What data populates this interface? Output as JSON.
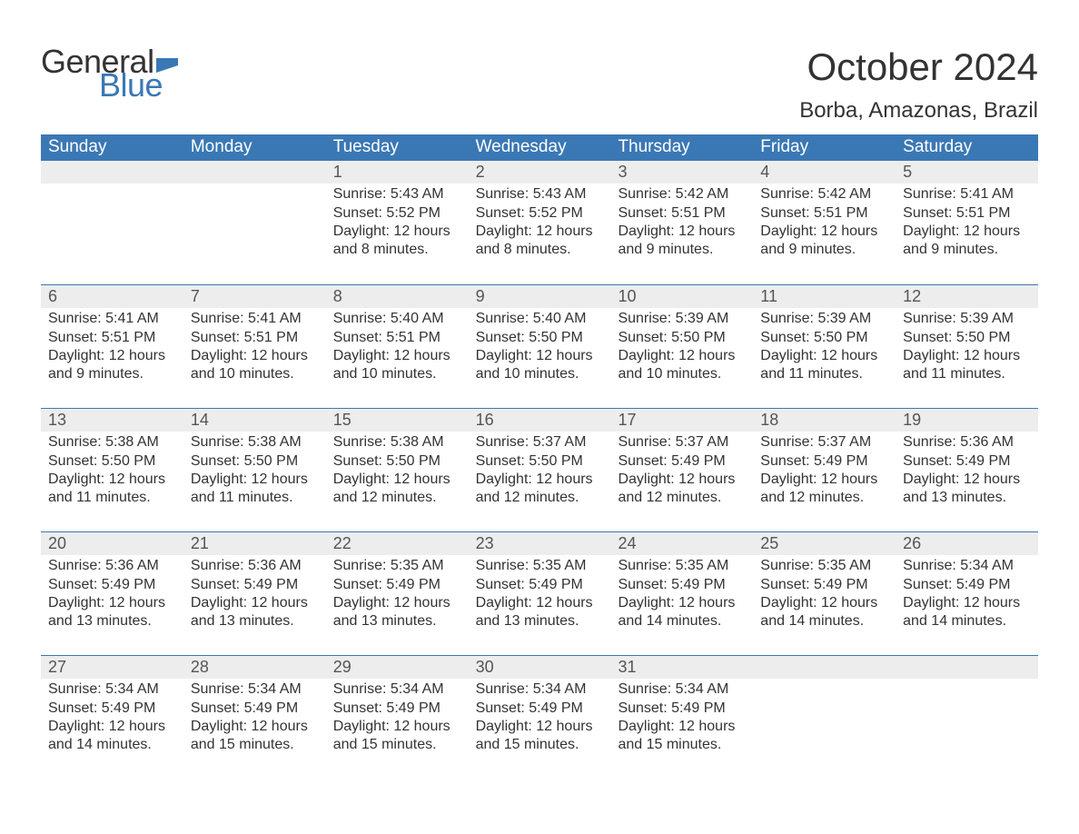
{
  "brand": {
    "word1": "General",
    "word2": "Blue",
    "flag_color": "#3a78b5",
    "word1_color": "#333333",
    "word2_color": "#3a78b5"
  },
  "title": "October 2024",
  "location": "Borba, Amazonas, Brazil",
  "colors": {
    "header_bg": "#3a78b5",
    "header_text": "#ffffff",
    "daynum_bg": "#ededed",
    "text": "#333333",
    "rule": "#3a78b5",
    "background": "#ffffff"
  },
  "typography": {
    "title_fontsize": 42,
    "location_fontsize": 24,
    "header_fontsize": 19,
    "daynum_fontsize": 18,
    "body_fontsize": 16
  },
  "day_headers": [
    "Sunday",
    "Monday",
    "Tuesday",
    "Wednesday",
    "Thursday",
    "Friday",
    "Saturday"
  ],
  "weeks": [
    [
      {
        "n": "",
        "sr": "",
        "ss": "",
        "dl1": "",
        "dl2": ""
      },
      {
        "n": "",
        "sr": "",
        "ss": "",
        "dl1": "",
        "dl2": ""
      },
      {
        "n": "1",
        "sr": "Sunrise: 5:43 AM",
        "ss": "Sunset: 5:52 PM",
        "dl1": "Daylight: 12 hours",
        "dl2": "and 8 minutes."
      },
      {
        "n": "2",
        "sr": "Sunrise: 5:43 AM",
        "ss": "Sunset: 5:52 PM",
        "dl1": "Daylight: 12 hours",
        "dl2": "and 8 minutes."
      },
      {
        "n": "3",
        "sr": "Sunrise: 5:42 AM",
        "ss": "Sunset: 5:51 PM",
        "dl1": "Daylight: 12 hours",
        "dl2": "and 9 minutes."
      },
      {
        "n": "4",
        "sr": "Sunrise: 5:42 AM",
        "ss": "Sunset: 5:51 PM",
        "dl1": "Daylight: 12 hours",
        "dl2": "and 9 minutes."
      },
      {
        "n": "5",
        "sr": "Sunrise: 5:41 AM",
        "ss": "Sunset: 5:51 PM",
        "dl1": "Daylight: 12 hours",
        "dl2": "and 9 minutes."
      }
    ],
    [
      {
        "n": "6",
        "sr": "Sunrise: 5:41 AM",
        "ss": "Sunset: 5:51 PM",
        "dl1": "Daylight: 12 hours",
        "dl2": "and 9 minutes."
      },
      {
        "n": "7",
        "sr": "Sunrise: 5:41 AM",
        "ss": "Sunset: 5:51 PM",
        "dl1": "Daylight: 12 hours",
        "dl2": "and 10 minutes."
      },
      {
        "n": "8",
        "sr": "Sunrise: 5:40 AM",
        "ss": "Sunset: 5:51 PM",
        "dl1": "Daylight: 12 hours",
        "dl2": "and 10 minutes."
      },
      {
        "n": "9",
        "sr": "Sunrise: 5:40 AM",
        "ss": "Sunset: 5:50 PM",
        "dl1": "Daylight: 12 hours",
        "dl2": "and 10 minutes."
      },
      {
        "n": "10",
        "sr": "Sunrise: 5:39 AM",
        "ss": "Sunset: 5:50 PM",
        "dl1": "Daylight: 12 hours",
        "dl2": "and 10 minutes."
      },
      {
        "n": "11",
        "sr": "Sunrise: 5:39 AM",
        "ss": "Sunset: 5:50 PM",
        "dl1": "Daylight: 12 hours",
        "dl2": "and 11 minutes."
      },
      {
        "n": "12",
        "sr": "Sunrise: 5:39 AM",
        "ss": "Sunset: 5:50 PM",
        "dl1": "Daylight: 12 hours",
        "dl2": "and 11 minutes."
      }
    ],
    [
      {
        "n": "13",
        "sr": "Sunrise: 5:38 AM",
        "ss": "Sunset: 5:50 PM",
        "dl1": "Daylight: 12 hours",
        "dl2": "and 11 minutes."
      },
      {
        "n": "14",
        "sr": "Sunrise: 5:38 AM",
        "ss": "Sunset: 5:50 PM",
        "dl1": "Daylight: 12 hours",
        "dl2": "and 11 minutes."
      },
      {
        "n": "15",
        "sr": "Sunrise: 5:38 AM",
        "ss": "Sunset: 5:50 PM",
        "dl1": "Daylight: 12 hours",
        "dl2": "and 12 minutes."
      },
      {
        "n": "16",
        "sr": "Sunrise: 5:37 AM",
        "ss": "Sunset: 5:50 PM",
        "dl1": "Daylight: 12 hours",
        "dl2": "and 12 minutes."
      },
      {
        "n": "17",
        "sr": "Sunrise: 5:37 AM",
        "ss": "Sunset: 5:49 PM",
        "dl1": "Daylight: 12 hours",
        "dl2": "and 12 minutes."
      },
      {
        "n": "18",
        "sr": "Sunrise: 5:37 AM",
        "ss": "Sunset: 5:49 PM",
        "dl1": "Daylight: 12 hours",
        "dl2": "and 12 minutes."
      },
      {
        "n": "19",
        "sr": "Sunrise: 5:36 AM",
        "ss": "Sunset: 5:49 PM",
        "dl1": "Daylight: 12 hours",
        "dl2": "and 13 minutes."
      }
    ],
    [
      {
        "n": "20",
        "sr": "Sunrise: 5:36 AM",
        "ss": "Sunset: 5:49 PM",
        "dl1": "Daylight: 12 hours",
        "dl2": "and 13 minutes."
      },
      {
        "n": "21",
        "sr": "Sunrise: 5:36 AM",
        "ss": "Sunset: 5:49 PM",
        "dl1": "Daylight: 12 hours",
        "dl2": "and 13 minutes."
      },
      {
        "n": "22",
        "sr": "Sunrise: 5:35 AM",
        "ss": "Sunset: 5:49 PM",
        "dl1": "Daylight: 12 hours",
        "dl2": "and 13 minutes."
      },
      {
        "n": "23",
        "sr": "Sunrise: 5:35 AM",
        "ss": "Sunset: 5:49 PM",
        "dl1": "Daylight: 12 hours",
        "dl2": "and 13 minutes."
      },
      {
        "n": "24",
        "sr": "Sunrise: 5:35 AM",
        "ss": "Sunset: 5:49 PM",
        "dl1": "Daylight: 12 hours",
        "dl2": "and 14 minutes."
      },
      {
        "n": "25",
        "sr": "Sunrise: 5:35 AM",
        "ss": "Sunset: 5:49 PM",
        "dl1": "Daylight: 12 hours",
        "dl2": "and 14 minutes."
      },
      {
        "n": "26",
        "sr": "Sunrise: 5:34 AM",
        "ss": "Sunset: 5:49 PM",
        "dl1": "Daylight: 12 hours",
        "dl2": "and 14 minutes."
      }
    ],
    [
      {
        "n": "27",
        "sr": "Sunrise: 5:34 AM",
        "ss": "Sunset: 5:49 PM",
        "dl1": "Daylight: 12 hours",
        "dl2": "and 14 minutes."
      },
      {
        "n": "28",
        "sr": "Sunrise: 5:34 AM",
        "ss": "Sunset: 5:49 PM",
        "dl1": "Daylight: 12 hours",
        "dl2": "and 15 minutes."
      },
      {
        "n": "29",
        "sr": "Sunrise: 5:34 AM",
        "ss": "Sunset: 5:49 PM",
        "dl1": "Daylight: 12 hours",
        "dl2": "and 15 minutes."
      },
      {
        "n": "30",
        "sr": "Sunrise: 5:34 AM",
        "ss": "Sunset: 5:49 PM",
        "dl1": "Daylight: 12 hours",
        "dl2": "and 15 minutes."
      },
      {
        "n": "31",
        "sr": "Sunrise: 5:34 AM",
        "ss": "Sunset: 5:49 PM",
        "dl1": "Daylight: 12 hours",
        "dl2": "and 15 minutes."
      },
      {
        "n": "",
        "sr": "",
        "ss": "",
        "dl1": "",
        "dl2": ""
      },
      {
        "n": "",
        "sr": "",
        "ss": "",
        "dl1": "",
        "dl2": ""
      }
    ]
  ]
}
